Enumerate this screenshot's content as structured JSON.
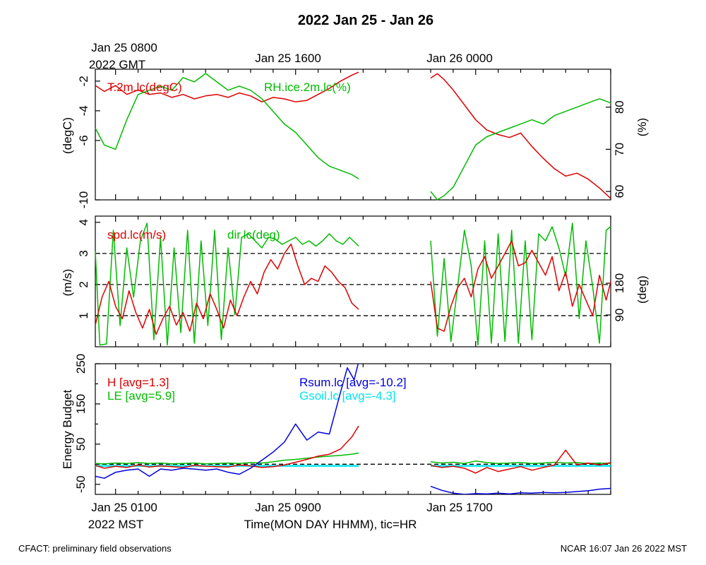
{
  "page": {
    "title": "2022 Jan 25 - Jan 26",
    "top_time_labels": [
      "Jan 25 0800",
      "Jan 25 1600",
      "Jan 26 0000"
    ],
    "top_time_sub": "2022 GMT",
    "bottom_time_labels": [
      "Jan 25 0100",
      "Jan 25 0900",
      "Jan 25 1700"
    ],
    "bottom_time_sub": "2022 MST",
    "xlabel": "Time(MON DAY HHMM), tic=HR",
    "footer_left": "CFACT: preliminary field observations",
    "footer_right": "NCAR 16:07 Jan 26 2022 MST"
  },
  "chart_data": [
    {
      "type": "line",
      "panel": "temperature-humidity",
      "x_unit": "hours since Jan 25 0000 MST",
      "xlim": [
        0.1,
        23.0
      ],
      "ylabel_left": "(degC)",
      "ylabel_right": "(%)",
      "ylim_left": [
        -10,
        -1.2
      ],
      "yticks_left": [
        -2,
        -4,
        -6,
        -10
      ],
      "ylim_right": [
        58,
        89
      ],
      "yticks_right": [
        60,
        70,
        80
      ],
      "series": [
        {
          "name": "T.2m.lc(degC)",
          "label": "T.2m.lc(degC)",
          "axis": "left",
          "color": "#dd0000",
          "x": [
            0.1,
            0.5,
            1.0,
            1.5,
            2.0,
            2.5,
            3.0,
            3.5,
            4.0,
            4.5,
            5.0,
            5.5,
            6.0,
            6.5,
            7.0,
            7.5,
            8.0,
            8.5,
            9.0,
            9.5,
            10.0,
            10.5,
            11.0,
            11.5,
            11.8,
            15.0,
            15.3,
            15.6,
            16.0,
            16.5,
            17.0,
            17.5,
            18.0,
            18.5,
            19.0,
            19.5,
            20.0,
            20.5,
            21.0,
            21.5,
            22.0,
            22.5,
            23.0
          ],
          "y": [
            -2.3,
            -2.7,
            -2.3,
            -2.9,
            -2.6,
            -2.9,
            -2.8,
            -3.1,
            -2.9,
            -3.2,
            -3.0,
            -2.9,
            -3.1,
            -2.8,
            -3.0,
            -3.4,
            -3.1,
            -3.2,
            -3.4,
            -3.3,
            -2.9,
            -2.5,
            -2.0,
            -1.6,
            -1.4,
            -1.8,
            -1.5,
            -1.9,
            -2.6,
            -3.6,
            -4.6,
            -5.3,
            -5.6,
            -5.8,
            -5.5,
            -6.4,
            -7.2,
            -7.9,
            -8.4,
            -8.2,
            -8.6,
            -9.2,
            -9.9
          ]
        },
        {
          "name": "RH.ice.2m.lc(%)",
          "label": "RH.ice.2m.lc(%)",
          "axis": "right",
          "color": "#00bb00",
          "x": [
            0.1,
            0.5,
            1.0,
            1.5,
            2.0,
            2.5,
            3.0,
            3.5,
            4.0,
            4.5,
            5.0,
            5.5,
            6.0,
            6.5,
            7.0,
            7.5,
            8.0,
            8.5,
            9.0,
            9.5,
            10.0,
            10.5,
            11.0,
            11.5,
            11.8,
            15.0,
            15.3,
            15.6,
            16.0,
            16.5,
            17.0,
            17.5,
            18.0,
            18.5,
            19.0,
            19.5,
            20.0,
            20.5,
            21.0,
            21.5,
            22.0,
            22.5,
            23.0
          ],
          "y": [
            75,
            71,
            70,
            77,
            83,
            84,
            85,
            84,
            87,
            86,
            88,
            86,
            84,
            85,
            84,
            82,
            79,
            76,
            74,
            71,
            68,
            66,
            65,
            64,
            63,
            60,
            58,
            59,
            61,
            66,
            71,
            73,
            74,
            75,
            76,
            77,
            76,
            78,
            79,
            80,
            81,
            82,
            81
          ]
        }
      ]
    },
    {
      "type": "line",
      "panel": "wind",
      "x_unit": "hours since Jan 25 0000 MST",
      "xlim": [
        0.1,
        23.0
      ],
      "ylabel_left": "(m/s)",
      "ylabel_right": "(deg)",
      "ylim_left": [
        0,
        4.2
      ],
      "yticks_left": [
        1,
        2,
        3,
        4
      ],
      "ylim_right": [
        0,
        370
      ],
      "yticks_right": [
        90,
        180
      ],
      "reference_lines_left": [
        1.0,
        2.0,
        3.0
      ],
      "series": [
        {
          "name": "spd.lc(m/s)",
          "label": "spd.lc(m/s)",
          "axis": "left",
          "color": "#dd0000",
          "x": [
            0.1,
            0.4,
            0.7,
            1.0,
            1.3,
            1.6,
            1.9,
            2.2,
            2.5,
            2.8,
            3.1,
            3.4,
            3.7,
            4.0,
            4.3,
            4.6,
            4.9,
            5.2,
            5.5,
            5.8,
            6.1,
            6.4,
            6.7,
            7.0,
            7.3,
            7.6,
            7.9,
            8.2,
            8.5,
            8.8,
            9.1,
            9.4,
            9.7,
            10.0,
            10.3,
            10.6,
            10.9,
            11.2,
            11.5,
            11.8,
            15.0,
            15.3,
            15.6,
            15.9,
            16.2,
            16.5,
            16.8,
            17.1,
            17.4,
            17.7,
            18.0,
            18.3,
            18.6,
            18.9,
            19.2,
            19.5,
            19.8,
            20.1,
            20.4,
            20.7,
            21.0,
            21.3,
            21.6,
            21.9,
            22.2,
            22.5,
            22.8,
            23.0
          ],
          "y": [
            0.7,
            1.6,
            2.1,
            1.3,
            0.9,
            1.8,
            1.1,
            0.6,
            1.2,
            0.4,
            0.9,
            1.3,
            0.7,
            1.1,
            0.5,
            1.4,
            0.9,
            1.7,
            1.2,
            0.6,
            1.5,
            1.0,
            1.6,
            2.1,
            1.7,
            2.4,
            2.8,
            2.5,
            3.0,
            3.3,
            2.6,
            2.0,
            2.2,
            2.1,
            2.6,
            2.4,
            2.1,
            1.9,
            1.4,
            1.2,
            2.1,
            0.6,
            0.5,
            1.3,
            1.9,
            2.2,
            1.6,
            2.5,
            2.9,
            2.2,
            2.6,
            3.0,
            3.4,
            2.6,
            2.7,
            3.1,
            2.7,
            2.3,
            2.9,
            1.8,
            2.4,
            1.3,
            2.0,
            1.5,
            1.0,
            2.3,
            1.5,
            2.1
          ]
        },
        {
          "name": "dir.lc(deg)",
          "label": "dir.lc(deg)",
          "axis": "right",
          "color": "#00bb00",
          "x": [
            0.1,
            0.3,
            0.6,
            0.9,
            1.2,
            1.5,
            1.8,
            2.1,
            2.4,
            2.7,
            3.0,
            3.3,
            3.6,
            3.9,
            4.2,
            4.5,
            4.8,
            5.1,
            5.4,
            5.7,
            6.0,
            6.3,
            6.6,
            6.9,
            7.2,
            7.5,
            7.8,
            8.1,
            8.4,
            8.7,
            9.0,
            9.3,
            9.6,
            9.9,
            10.2,
            10.5,
            10.8,
            11.1,
            11.4,
            11.8,
            15.0,
            15.3,
            15.6,
            15.9,
            16.2,
            16.5,
            16.8,
            17.1,
            17.4,
            17.7,
            18.0,
            18.3,
            18.6,
            18.9,
            19.2,
            19.5,
            19.8,
            20.1,
            20.4,
            20.7,
            21.0,
            21.3,
            21.6,
            21.9,
            22.2,
            22.5,
            22.8,
            23.0
          ],
          "y": [
            270,
            5,
            8,
            330,
            60,
            280,
            140,
            300,
            350,
            20,
            310,
            5,
            280,
            40,
            330,
            10,
            300,
            60,
            330,
            20,
            280,
            90,
            310,
            320,
            300,
            280,
            310,
            305,
            290,
            300,
            310,
            290,
            300,
            285,
            300,
            320,
            300,
            290,
            310,
            285,
            300,
            30,
            250,
            15,
            170,
            330,
            230,
            5,
            300,
            10,
            320,
            15,
            330,
            10,
            300,
            20,
            320,
            300,
            340,
            280,
            200,
            350,
            80,
            300,
            170,
            10,
            330,
            340
          ]
        }
      ]
    },
    {
      "type": "line",
      "panel": "energy-budget",
      "x_unit": "hours since Jan 25 0000 MST",
      "xlim": [
        0.1,
        23.0
      ],
      "ylabel": "Energy Budget",
      "ylim": [
        -75,
        250
      ],
      "yticks": [
        -50,
        50,
        150,
        250
      ],
      "reference_line": 0,
      "series": [
        {
          "name": "H",
          "label": "H [avg=1.3]",
          "color": "#dd0000",
          "x": [
            0.1,
            0.5,
            1.0,
            1.5,
            2.0,
            2.5,
            3.0,
            3.5,
            4.0,
            4.5,
            5.0,
            5.5,
            6.0,
            6.5,
            7.0,
            7.5,
            8.0,
            8.5,
            9.0,
            9.5,
            10.0,
            10.5,
            11.0,
            11.5,
            11.8,
            15.0,
            15.5,
            16.0,
            16.5,
            17.0,
            17.5,
            18.0,
            18.5,
            19.0,
            19.5,
            20.0,
            20.5,
            21.0,
            21.5,
            22.0,
            22.5,
            23.0
          ],
          "y": [
            -3,
            -10,
            -5,
            -8,
            -2,
            -7,
            -4,
            -6,
            -8,
            -3,
            -5,
            -6,
            -7,
            -2,
            -4,
            -8,
            -6,
            -2,
            5,
            12,
            20,
            25,
            38,
            68,
            95,
            -3,
            -8,
            -5,
            -10,
            -22,
            -8,
            -18,
            -12,
            -6,
            -15,
            -8,
            -2,
            35,
            -2,
            3,
            -2,
            4
          ]
        },
        {
          "name": "LE",
          "label": "LE [avg=5.9]",
          "color": "#00bb00",
          "x": [
            0.1,
            0.5,
            1.0,
            1.5,
            2.0,
            2.5,
            3.0,
            3.5,
            4.0,
            4.5,
            5.0,
            5.5,
            6.0,
            6.5,
            7.0,
            7.5,
            8.0,
            8.5,
            9.0,
            9.5,
            10.0,
            10.5,
            11.0,
            11.5,
            11.8,
            15.0,
            15.5,
            16.0,
            16.5,
            17.0,
            17.5,
            18.0,
            18.5,
            19.0,
            19.5,
            20.0,
            20.5,
            21.0,
            21.5,
            22.0,
            22.5,
            23.0
          ],
          "y": [
            2,
            1,
            3,
            2,
            4,
            2,
            3,
            1,
            2,
            3,
            1,
            2,
            3,
            2,
            4,
            3,
            6,
            10,
            12,
            15,
            18,
            20,
            22,
            25,
            28,
            6,
            3,
            5,
            2,
            8,
            4,
            2,
            3,
            4,
            2,
            3,
            5,
            3,
            4,
            2,
            3,
            2
          ]
        },
        {
          "name": "Rsum.lc",
          "label": "Rsum.lc [avg=-10.2]",
          "color": "#0000dd",
          "x": [
            0.1,
            0.5,
            1.0,
            1.5,
            2.0,
            2.5,
            3.0,
            3.5,
            4.0,
            4.5,
            5.0,
            5.5,
            6.0,
            6.5,
            7.0,
            7.5,
            8.0,
            8.5,
            9.0,
            9.5,
            10.0,
            10.5,
            11.0,
            11.3,
            11.6,
            11.8,
            15.0,
            15.5,
            16.0,
            16.5,
            17.0,
            17.5,
            18.0,
            18.5,
            19.0,
            19.5,
            20.0,
            20.5,
            21.0,
            21.5,
            22.0,
            22.5,
            23.0
          ],
          "y": [
            -30,
            -35,
            -20,
            -15,
            -12,
            -30,
            -12,
            -15,
            -10,
            -12,
            -15,
            -12,
            -20,
            -25,
            -10,
            10,
            30,
            55,
            100,
            60,
            80,
            75,
            180,
            240,
            210,
            255,
            -55,
            -65,
            -72,
            -75,
            -73,
            -74,
            -72,
            -74,
            -71,
            -72,
            -70,
            -71,
            -70,
            -68,
            -66,
            -62,
            -60
          ]
        },
        {
          "name": "Gsoil.lc",
          "label": "Gsoil.lc [avg=-4.3]",
          "color": "#00e5ee",
          "x": [
            0.1,
            2.0,
            4.0,
            6.0,
            8.0,
            10.0,
            11.8,
            15.0,
            17.0,
            19.0,
            21.0,
            23.0
          ],
          "y": [
            -4,
            -4,
            -4,
            -4,
            -4,
            -4,
            -4,
            -4,
            -4,
            -4,
            -4,
            -4
          ]
        }
      ]
    }
  ]
}
